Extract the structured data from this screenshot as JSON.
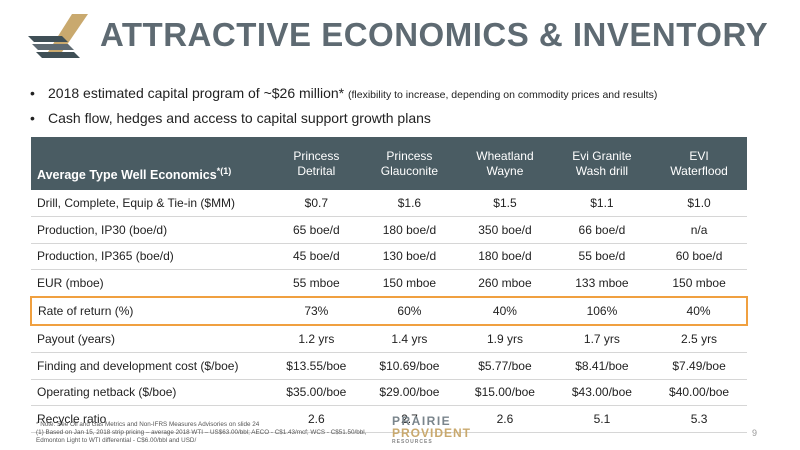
{
  "title": "ATTRACTIVE ECONOMICS & INVENTORY",
  "bullets": [
    {
      "main": "2018 estimated capital program of ~$26 million*",
      "small": "(flexibility to increase, depending on commodity prices and results)"
    },
    {
      "main": "Cash flow, hedges and access to capital support growth plans",
      "small": ""
    }
  ],
  "table": {
    "corner": "Average Type Well Economics",
    "corner_sup": "*(1)",
    "columns": [
      {
        "line1": "Princess",
        "line2": "Detrital"
      },
      {
        "line1": "Princess",
        "line2": "Glauconite"
      },
      {
        "line1": "Wheatland",
        "line2": "Wayne"
      },
      {
        "line1": "Evi Granite",
        "line2": "Wash drill"
      },
      {
        "line1": "EVI",
        "line2": "Waterflood"
      }
    ],
    "rows": [
      {
        "label": "Drill, Complete, Equip & Tie-in ($MM)",
        "values": [
          "$0.7",
          "$1.6",
          "$1.5",
          "$1.1",
          "$1.0"
        ]
      },
      {
        "label": "Production, IP30 (boe/d)",
        "values": [
          "65 boe/d",
          "180 boe/d",
          "350 boe/d",
          "66 boe/d",
          "n/a"
        ]
      },
      {
        "label": "Production, IP365 (boe/d)",
        "values": [
          "45 boe/d",
          "130 boe/d",
          "180 boe/d",
          "55 boe/d",
          "60 boe/d"
        ]
      },
      {
        "label": "EUR (mboe)",
        "values": [
          "55 mboe",
          "150 mboe",
          "260 mboe",
          "133 mboe",
          "150 mboe"
        ]
      },
      {
        "label": "Rate of return (%)",
        "values": [
          "73%",
          "60%",
          "40%",
          "106%",
          "40%"
        ]
      },
      {
        "label": "Payout (years)",
        "values": [
          "1.2 yrs",
          "1.4 yrs",
          "1.9 yrs",
          "1.7 yrs",
          "2.5 yrs"
        ]
      },
      {
        "label": "Finding and development cost ($/boe)",
        "values": [
          "$13.55/boe",
          "$10.69/boe",
          "$5.77/boe",
          "$8.41/boe",
          "$7.49/boe"
        ]
      },
      {
        "label": "Operating netback ($/boe)",
        "values": [
          "$35.00/boe",
          "$29.00/boe",
          "$15.00/boe",
          "$43.00/boe",
          "$40.00/boe"
        ]
      },
      {
        "label": "Recycle ratio",
        "values": [
          "2.6",
          "2.7",
          "2.6",
          "5.1",
          "5.3"
        ]
      }
    ]
  },
  "footnotes": {
    "line1": "* Note: See Oil and Gas Metrics and Non-IFRS Measures Advisories on slide 24",
    "line2": "(1) Based on Jan 15, 2018 strip pricing – average 2018 WTI – US$63.00/bbl; AECO - C$1.43/mcf; WCS - C$51.50/bbl,",
    "line3": "Edmonton Light to WTI differential - C$6.00/bbl and USD/"
  },
  "brand": {
    "line1": "PRAIRIE",
    "line2": "PROVIDENT",
    "line3": "RESOURCES"
  },
  "page_number": "9",
  "colors": {
    "title": "#5e6a72",
    "header_bg": "#4a5c63",
    "highlight": "#f0a040",
    "brand_gold": "#c9a96e"
  },
  "highlight_row_index": 4
}
